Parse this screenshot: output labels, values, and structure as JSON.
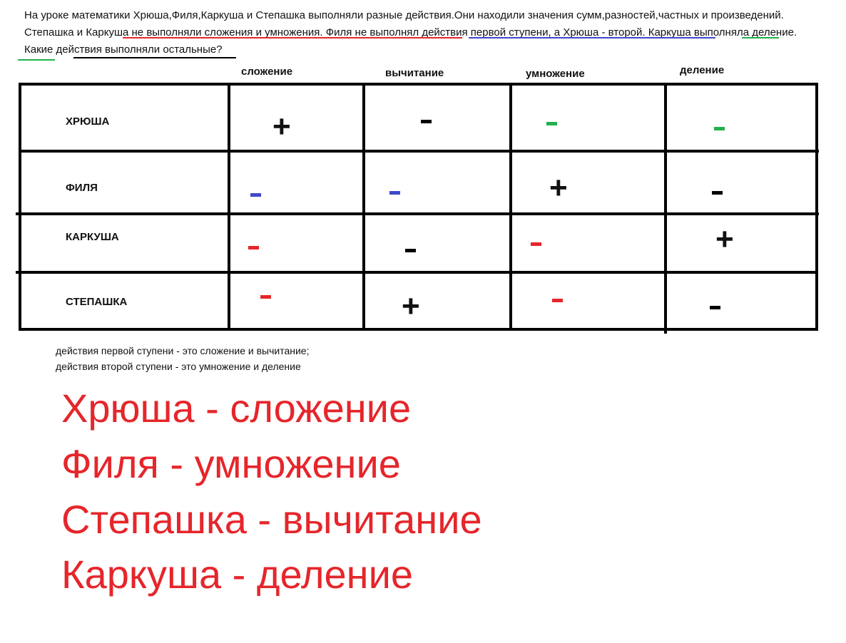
{
  "problem": {
    "part1": "На уроке математики Хрюша,Филя,Каркуша и Степашка выполняли разные действия.Они находили значения сумм,разностей,частных и произведений. ",
    "part2": "Степашка и Каркуша не выполняли сложения и умножения.",
    "part3": " ",
    "part4": "Филя не выполнял действия первой ступени",
    "part5": ", а ",
    "part6": "Хрюша - второй.",
    "part7": " ",
    "part8": "Каркуша выполняла деление.",
    "part9": " Какие действия выполняли остальные?"
  },
  "table": {
    "headers": [
      "сложение",
      "вычитание",
      "умножение",
      "деление"
    ],
    "rows": [
      {
        "name": "ХРЮША",
        "marks": [
          "+",
          "-",
          "-",
          "-"
        ]
      },
      {
        "name": "ФИЛЯ",
        "marks": [
          "-",
          "-",
          "+",
          "-"
        ]
      },
      {
        "name": "КАРКУША",
        "marks": [
          "-",
          "-",
          "-",
          "+"
        ]
      },
      {
        "name": "СТЕПАШКА",
        "marks": [
          "-",
          "+",
          "-",
          "-"
        ]
      }
    ]
  },
  "colors": {
    "red": "#e5262b",
    "blue": "#3f48cc",
    "green": "#22b14c",
    "black": "#000000"
  },
  "notes": [
    "действия первой ступени - это сложение и вычитание;",
    "действия второй ступени - это умножение и деление"
  ],
  "answers": [
    "Хрюша - сложение",
    "Филя - умножение",
    "Степашка - вычитание",
    "Каркуша - деление"
  ]
}
